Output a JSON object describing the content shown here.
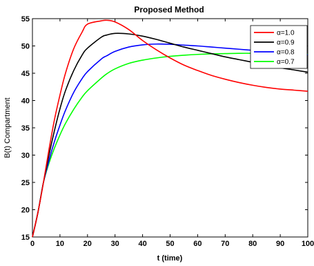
{
  "chart_data": {
    "type": "line",
    "title": "Proposed Method",
    "xlabel": "t (time)",
    "ylabel": "B(t) Compartment",
    "xlim": [
      0,
      100
    ],
    "ylim": [
      15,
      55
    ],
    "xticks": [
      0,
      10,
      20,
      30,
      40,
      50,
      60,
      70,
      80,
      90,
      100
    ],
    "yticks": [
      15,
      20,
      25,
      30,
      35,
      40,
      45,
      50,
      55
    ],
    "grid": false,
    "legend_position": "top-right",
    "x": [
      0,
      2,
      4,
      6,
      8,
      10,
      12,
      15,
      18,
      20,
      25,
      27,
      30,
      35,
      40,
      45,
      50,
      55,
      60,
      65,
      70,
      75,
      80,
      85,
      90,
      95,
      100
    ],
    "series": [
      {
        "name": "α=1.0",
        "color": "#ff0000",
        "values": [
          15,
          19.5,
          25,
          31,
          36.5,
          41,
          45,
          49.5,
          52.5,
          54,
          54.6,
          54.7,
          54.4,
          53,
          51,
          49.3,
          47.8,
          46.5,
          45.5,
          44.6,
          43.9,
          43.3,
          42.8,
          42.4,
          42.1,
          41.9,
          41.7
        ]
      },
      {
        "name": "α=0.9",
        "color": "#000000",
        "values": [
          15,
          19.5,
          25,
          30,
          34.5,
          38.5,
          41.8,
          45.5,
          48.3,
          49.6,
          51.6,
          52,
          52.3,
          52.2,
          51.8,
          51.2,
          50.5,
          49.8,
          49.2,
          48.6,
          48,
          47.5,
          47,
          46.5,
          46,
          45.6,
          45.2
        ]
      },
      {
        "name": "α=0.8",
        "color": "#0000ff",
        "values": [
          15,
          19.5,
          25,
          29,
          32.5,
          35.5,
          38.2,
          41.5,
          44,
          45.3,
          47.6,
          48.2,
          49,
          49.8,
          50.2,
          50.35,
          50.3,
          50.15,
          50,
          49.8,
          49.6,
          49.4,
          49.2,
          49,
          48.8,
          48.6,
          48.4
        ]
      },
      {
        "name": "α=0.7",
        "color": "#00ff00",
        "values": [
          15,
          19.5,
          25,
          28.5,
          31.3,
          33.7,
          35.8,
          38.4,
          40.6,
          41.8,
          44.1,
          44.9,
          45.8,
          46.8,
          47.4,
          47.8,
          48.1,
          48.3,
          48.45,
          48.55,
          48.6,
          48.65,
          48.65,
          48.6,
          48.6,
          48.55,
          48.5
        ]
      }
    ]
  }
}
